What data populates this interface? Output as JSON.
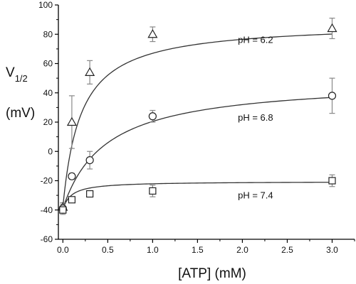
{
  "chart_data": {
    "type": "scatter",
    "xlabel": "[ATP] (mM)",
    "ylabel_main": "V",
    "ylabel_sub": "1/2",
    "ylabel_unit": "(mV)",
    "xlim": [
      -0.05,
      3.25
    ],
    "ylim": [
      -60,
      100
    ],
    "x_ticks": [
      0.0,
      0.5,
      1.0,
      1.5,
      2.0,
      2.5,
      3.0
    ],
    "x_tick_labels": [
      "0.0",
      "0.5",
      "1.0",
      "1.5",
      "2.0",
      "2.5",
      "3.0"
    ],
    "y_ticks": [
      -60,
      -40,
      -20,
      0,
      20,
      40,
      60,
      80,
      100
    ],
    "y_tick_labels": [
      "-60",
      "-40",
      "-20",
      "0",
      "20",
      "40",
      "60",
      "80",
      "100"
    ],
    "grid": false,
    "legend": "none",
    "colors": {
      "markers": "#222222",
      "error_bars": "#888888",
      "fit": "#333333",
      "axes": "#000000"
    },
    "series": [
      {
        "label": "pH = 6.2",
        "marker": "triangle",
        "x": [
          0,
          0.1,
          0.3,
          1.0,
          3.0
        ],
        "y": [
          -38,
          20,
          54,
          80,
          84
        ],
        "err": [
          3,
          18,
          8,
          5,
          7
        ],
        "fit": {
          "y0": -38,
          "amplitude": 126,
          "k": 0.2
        }
      },
      {
        "label": "pH = 6.8",
        "marker": "circle",
        "x": [
          0,
          0.1,
          0.3,
          1.0,
          3.0
        ],
        "y": [
          -39,
          -17,
          -6,
          24,
          38
        ],
        "err": [
          3,
          2,
          6,
          4,
          12
        ],
        "fit": {
          "y0": -39,
          "amplitude": 88,
          "k": 0.48
        }
      },
      {
        "label": "pH = 7.4",
        "marker": "square",
        "x": [
          0,
          0.1,
          0.3,
          1.0,
          3.0
        ],
        "y": [
          -40,
          -33,
          -29,
          -27,
          -20
        ],
        "err": [
          3,
          2,
          2,
          4,
          4
        ],
        "fit": {
          "y0": -40,
          "amplitude": 19.5,
          "k": 0.09
        }
      }
    ],
    "label_positions": [
      {
        "series": 0,
        "x": 1.95,
        "y": 74
      },
      {
        "series": 1,
        "x": 1.95,
        "y": 21
      },
      {
        "series": 2,
        "x": 1.95,
        "y": -32
      }
    ]
  }
}
